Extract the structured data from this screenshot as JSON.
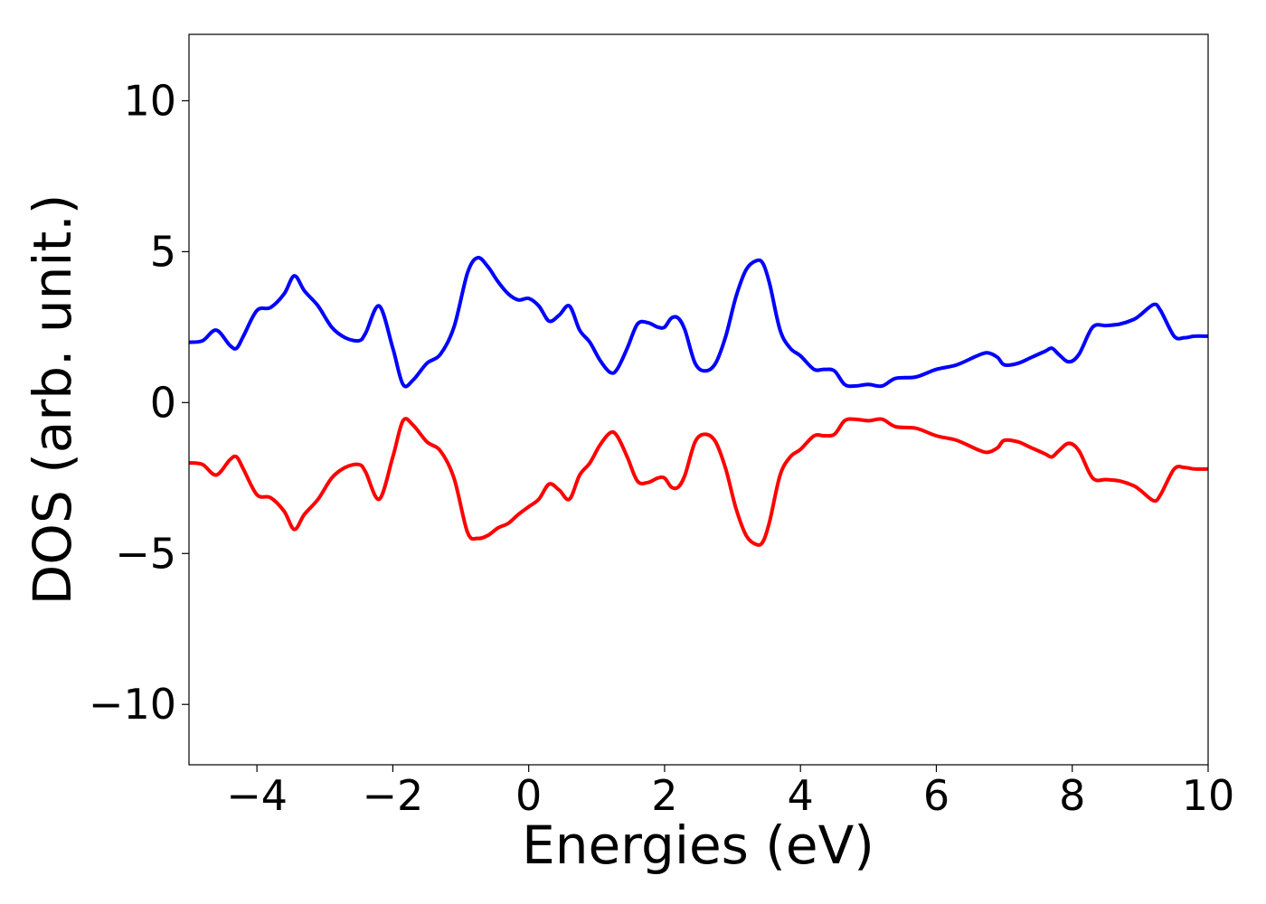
{
  "chart_data": {
    "type": "line",
    "xlabel": "Energies (eV)",
    "ylabel": "DOS (arb. unit.)",
    "xlim": [
      -5,
      10
    ],
    "ylim": [
      -12,
      12.2
    ],
    "xticks": [
      -4,
      -2,
      0,
      2,
      4,
      6,
      8,
      10
    ],
    "xtick_labels": [
      "−4",
      "−2",
      "0",
      "2",
      "4",
      "6",
      "8",
      "10"
    ],
    "yticks": [
      10,
      5,
      0,
      -5,
      -10
    ],
    "ytick_labels": [
      "10",
      "5",
      "0",
      "−5",
      "−10"
    ],
    "grid": false,
    "legend": "none",
    "series": [
      {
        "color": "#0000ff",
        "x": [
          -5.0,
          -4.8,
          -4.6,
          -4.4,
          -4.3,
          -4.2,
          -4.0,
          -3.8,
          -3.6,
          -3.45,
          -3.3,
          -3.1,
          -2.9,
          -2.7,
          -2.5,
          -2.4,
          -2.2,
          -2.0,
          -1.85,
          -1.7,
          -1.5,
          -1.3,
          -1.1,
          -0.9,
          -0.75,
          -0.6,
          -0.45,
          -0.3,
          -0.15,
          0.0,
          0.15,
          0.3,
          0.45,
          0.6,
          0.75,
          0.9,
          1.05,
          1.2,
          1.3,
          1.45,
          1.6,
          1.75,
          1.9,
          2.0,
          2.1,
          2.2,
          2.3,
          2.45,
          2.6,
          2.75,
          2.9,
          3.05,
          3.2,
          3.35,
          3.45,
          3.55,
          3.7,
          3.85,
          4.0,
          4.2,
          4.35,
          4.5,
          4.65,
          4.8,
          5.0,
          5.2,
          5.4,
          5.7,
          6.0,
          6.3,
          6.6,
          6.75,
          6.9,
          7.0,
          7.2,
          7.4,
          7.6,
          7.7,
          7.8,
          7.95,
          8.1,
          8.3,
          8.5,
          8.7,
          8.9,
          9.0,
          9.2,
          9.3,
          9.5,
          9.65,
          9.8,
          10.0
        ],
        "values": [
          2.0,
          2.05,
          2.4,
          1.9,
          1.8,
          2.2,
          3.05,
          3.15,
          3.6,
          4.2,
          3.7,
          3.2,
          2.5,
          2.15,
          2.05,
          2.3,
          3.2,
          1.8,
          0.6,
          0.75,
          1.3,
          1.6,
          2.5,
          4.3,
          4.8,
          4.5,
          4.0,
          3.6,
          3.4,
          3.45,
          3.2,
          2.7,
          2.9,
          3.2,
          2.4,
          2.0,
          1.4,
          1.0,
          1.1,
          1.8,
          2.6,
          2.65,
          2.5,
          2.5,
          2.8,
          2.8,
          2.4,
          1.3,
          1.05,
          1.3,
          2.2,
          3.5,
          4.4,
          4.7,
          4.6,
          3.9,
          2.4,
          1.8,
          1.55,
          1.1,
          1.1,
          1.05,
          0.6,
          0.55,
          0.6,
          0.55,
          0.8,
          0.85,
          1.1,
          1.25,
          1.55,
          1.65,
          1.5,
          1.25,
          1.3,
          1.5,
          1.7,
          1.8,
          1.6,
          1.35,
          1.6,
          2.5,
          2.55,
          2.6,
          2.75,
          2.9,
          3.25,
          3.05,
          2.2,
          2.15,
          2.2,
          2.2
        ]
      },
      {
        "color": "#ff0000",
        "x": [
          -5.0,
          -4.8,
          -4.6,
          -4.4,
          -4.3,
          -4.2,
          -4.0,
          -3.8,
          -3.6,
          -3.45,
          -3.3,
          -3.1,
          -2.9,
          -2.7,
          -2.5,
          -2.4,
          -2.2,
          -2.0,
          -1.85,
          -1.7,
          -1.5,
          -1.3,
          -1.1,
          -0.9,
          -0.75,
          -0.6,
          -0.45,
          -0.3,
          -0.15,
          0.0,
          0.15,
          0.3,
          0.45,
          0.6,
          0.75,
          0.9,
          1.05,
          1.2,
          1.3,
          1.45,
          1.6,
          1.75,
          1.9,
          2.0,
          2.1,
          2.2,
          2.3,
          2.45,
          2.6,
          2.75,
          2.9,
          3.05,
          3.2,
          3.35,
          3.45,
          3.55,
          3.7,
          3.85,
          4.0,
          4.2,
          4.35,
          4.5,
          4.65,
          4.8,
          5.0,
          5.2,
          5.4,
          5.7,
          6.0,
          6.3,
          6.6,
          6.75,
          6.9,
          7.0,
          7.2,
          7.4,
          7.6,
          7.7,
          7.8,
          7.95,
          8.1,
          8.3,
          8.5,
          8.7,
          8.9,
          9.0,
          9.2,
          9.3,
          9.5,
          9.65,
          9.8,
          10.0
        ],
        "values": [
          -2.0,
          -2.05,
          -2.4,
          -1.9,
          -1.8,
          -2.2,
          -3.05,
          -3.15,
          -3.6,
          -4.2,
          -3.7,
          -3.2,
          -2.5,
          -2.15,
          -2.05,
          -2.3,
          -3.2,
          -1.8,
          -0.6,
          -0.75,
          -1.3,
          -1.6,
          -2.5,
          -4.3,
          -4.5,
          -4.4,
          -4.15,
          -4.0,
          -3.7,
          -3.45,
          -3.2,
          -2.7,
          -2.9,
          -3.2,
          -2.4,
          -2.0,
          -1.4,
          -1.0,
          -1.1,
          -1.8,
          -2.6,
          -2.65,
          -2.5,
          -2.5,
          -2.8,
          -2.8,
          -2.4,
          -1.3,
          -1.05,
          -1.3,
          -2.2,
          -3.5,
          -4.4,
          -4.7,
          -4.6,
          -3.9,
          -2.4,
          -1.8,
          -1.55,
          -1.1,
          -1.1,
          -1.05,
          -0.6,
          -0.55,
          -0.6,
          -0.55,
          -0.8,
          -0.85,
          -1.1,
          -1.25,
          -1.55,
          -1.65,
          -1.5,
          -1.25,
          -1.3,
          -1.5,
          -1.7,
          -1.8,
          -1.6,
          -1.35,
          -1.6,
          -2.5,
          -2.55,
          -2.6,
          -2.75,
          -2.9,
          -3.25,
          -3.05,
          -2.2,
          -2.15,
          -2.2,
          -2.2
        ]
      }
    ]
  }
}
